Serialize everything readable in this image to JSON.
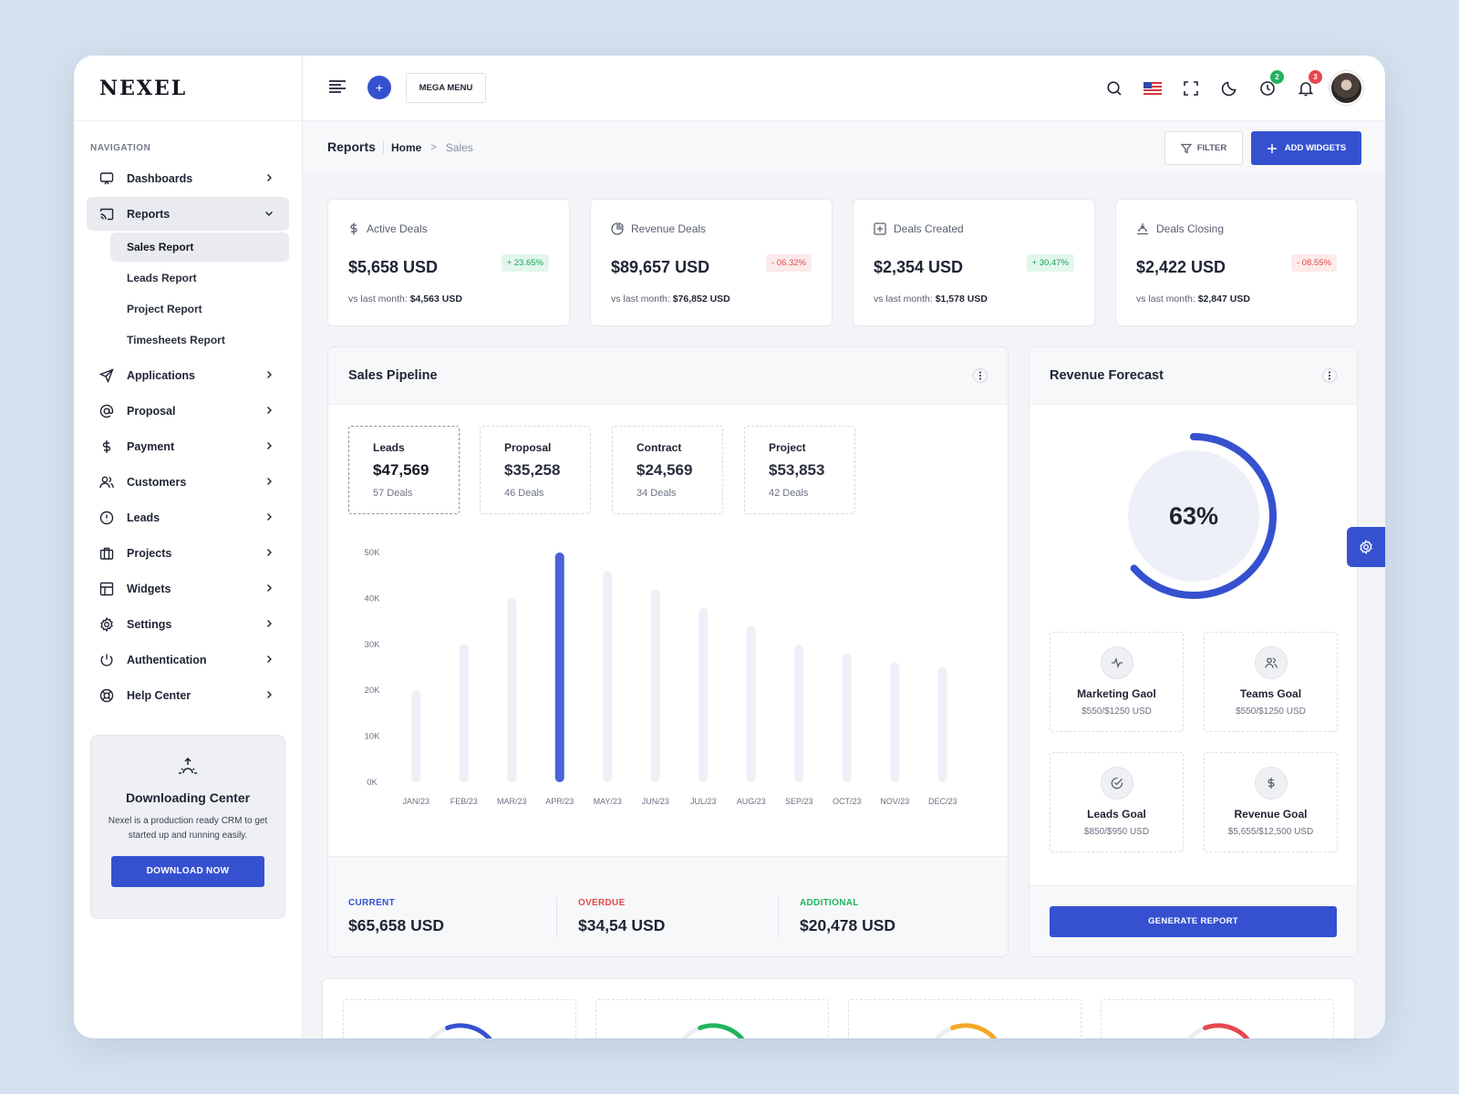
{
  "brand": {
    "logo": "NEXEL"
  },
  "sidebar": {
    "caption": "NAVIGATION",
    "items": [
      {
        "label": "Dashboards",
        "icon": "monitor-icon"
      },
      {
        "label": "Reports",
        "icon": "cast-icon",
        "expanded": true
      },
      {
        "label": "Applications",
        "icon": "send-icon"
      },
      {
        "label": "Proposal",
        "icon": "at-sign-icon"
      },
      {
        "label": "Payment",
        "icon": "dollar-icon"
      },
      {
        "label": "Customers",
        "icon": "users-icon"
      },
      {
        "label": "Leads",
        "icon": "alert-circle-icon"
      },
      {
        "label": "Projects",
        "icon": "briefcase-icon"
      },
      {
        "label": "Widgets",
        "icon": "layout-icon"
      },
      {
        "label": "Settings",
        "icon": "gear-icon"
      },
      {
        "label": "Authentication",
        "icon": "power-icon"
      },
      {
        "label": "Help Center",
        "icon": "life-buoy-icon"
      }
    ],
    "reports_sub": [
      "Sales Report",
      "Leads Report",
      "Project Report",
      "Timesheets Report"
    ],
    "download_card": {
      "title": "Downloading Center",
      "text": "Nexel is a production ready CRM to get started up and running easily.",
      "button": "DOWNLOAD NOW"
    }
  },
  "topbar": {
    "mega_menu": "MEGA MENU",
    "plus": "+",
    "badges": {
      "clock": "2",
      "bell": "3"
    },
    "colors": {
      "accent": "#3551d0",
      "green_badge": "#22b35e",
      "red_badge": "#e5484d"
    }
  },
  "subheader": {
    "title": "Reports",
    "breadcrumb_home": "Home",
    "breadcrumb_sep": ">",
    "breadcrumb_current": "Sales",
    "filter": "FILTER",
    "add_widgets": "ADD WIDGETS"
  },
  "stats": [
    {
      "label": "Active Deals",
      "value": "$5,658 USD",
      "change": "+ 23.65%",
      "dir": "up",
      "cmp_label": "vs last month:",
      "cmp_value": "$4,563 USD"
    },
    {
      "label": "Revenue Deals",
      "value": "$89,657 USD",
      "change": "- 06.32%",
      "dir": "down",
      "cmp_label": "vs last month:",
      "cmp_value": "$76,852 USD"
    },
    {
      "label": "Deals Created",
      "value": "$2,354 USD",
      "change": "+ 30.47%",
      "dir": "up",
      "cmp_label": "vs last month:",
      "cmp_value": "$1,578 USD"
    },
    {
      "label": "Deals Closing",
      "value": "$2,422 USD",
      "change": "- 08.55%",
      "dir": "down",
      "cmp_label": "vs last month:",
      "cmp_value": "$2,847 USD"
    }
  ],
  "pipeline": {
    "title": "Sales Pipeline",
    "stages": [
      {
        "name": "Leads",
        "value": "$47,569",
        "deals": "57 Deals"
      },
      {
        "name": "Proposal",
        "value": "$35,258",
        "deals": "46 Deals"
      },
      {
        "name": "Contract",
        "value": "$24,569",
        "deals": "34 Deals"
      },
      {
        "name": "Project",
        "value": "$53,853",
        "deals": "42 Deals"
      }
    ],
    "footer": [
      {
        "label": "CURRENT",
        "value": "$65,658 USD",
        "color": "#3551d0"
      },
      {
        "label": "OVERDUE",
        "value": "$34,54 USD",
        "color": "#e5484d"
      },
      {
        "label": "ADDITIONAL",
        "value": "$20,478 USD",
        "color": "#22b35e"
      }
    ]
  },
  "chart_data": {
    "type": "bar",
    "categories": [
      "JAN/23",
      "FEB/23",
      "MAR/23",
      "APR/23",
      "MAY/23",
      "JUN/23",
      "JUL/23",
      "AUG/23",
      "SEP/23",
      "OCT/23",
      "NOV/23",
      "DEC/23"
    ],
    "values": [
      20000,
      30000,
      40000,
      50000,
      46000,
      42000,
      38000,
      34000,
      30000,
      28000,
      26000,
      25000
    ],
    "highlight_index": 3,
    "y_ticks": [
      "0K",
      "10K",
      "20K",
      "30K",
      "40K",
      "50K"
    ],
    "ylim": [
      0,
      50000
    ],
    "title": "",
    "xlabel": "",
    "ylabel": "",
    "grid": false,
    "colors": {
      "bar": "#eef0f8",
      "highlight": "#4a63d6"
    }
  },
  "forecast": {
    "title": "Revenue Forecast",
    "percent": "63%",
    "progress": 0.63,
    "goals": [
      {
        "name": "Marketing Gaol",
        "value": "$550/$1250 USD",
        "icon": "activity-icon"
      },
      {
        "name": "Teams Goal",
        "value": "$550/$1250 USD",
        "icon": "users-icon"
      },
      {
        "name": "Leads Goal",
        "value": "$850/$950 USD",
        "icon": "check-circle-icon"
      },
      {
        "name": "Revenue Goal",
        "value": "$5,655/$12,500 USD",
        "icon": "dollar-icon"
      }
    ],
    "button": "GENERATE REPORT"
  },
  "bottom_rings": [
    {
      "color": "#3551d0"
    },
    {
      "color": "#22b35e"
    },
    {
      "color": "#f5a623"
    },
    {
      "color": "#e5484d"
    }
  ]
}
